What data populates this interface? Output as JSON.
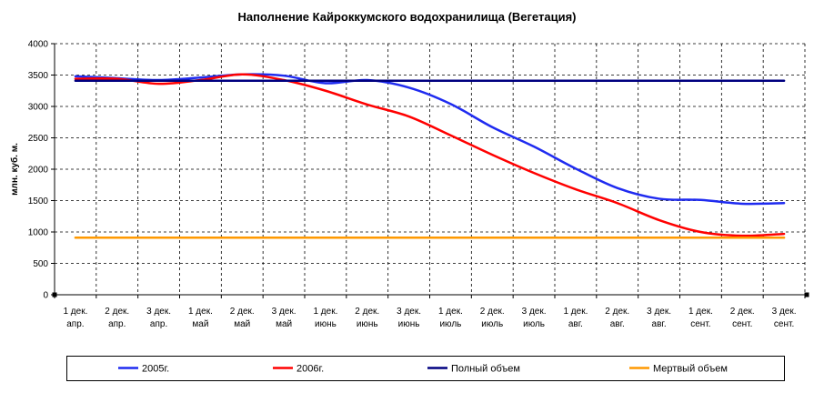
{
  "chart_data": {
    "type": "line",
    "title": "Наполнение Кайроккумского водохранилища (Вегетация)",
    "ylabel": "млн. куб. м.",
    "ylim": [
      0,
      4000
    ],
    "yticks": [
      0,
      500,
      1000,
      1500,
      2000,
      2500,
      3000,
      3500,
      4000
    ],
    "categories": [
      [
        "1 дек.",
        "апр."
      ],
      [
        "2 дек.",
        "апр."
      ],
      [
        "3 дек.",
        "апр."
      ],
      [
        "1 дек.",
        "май"
      ],
      [
        "2 дек.",
        "май"
      ],
      [
        "3 дек.",
        "май"
      ],
      [
        "1 дек.",
        "июнь"
      ],
      [
        "2 дек.",
        "июнь"
      ],
      [
        "3 дек.",
        "июнь"
      ],
      [
        "1 дек.",
        "июль"
      ],
      [
        "2 дек.",
        "июль"
      ],
      [
        "3 дек.",
        "июль"
      ],
      [
        "1 дек.",
        "авг."
      ],
      [
        "2 дек.",
        "авг."
      ],
      [
        "3 дек.",
        "авг."
      ],
      [
        "1 дек.",
        "сент."
      ],
      [
        "2 дек.",
        "сент."
      ],
      [
        "3 дек.",
        "сент."
      ]
    ],
    "series": [
      {
        "name": "2005г.",
        "color": "#1f2bf0",
        "values": [
          3480,
          3450,
          3420,
          3460,
          3510,
          3490,
          3370,
          3420,
          3300,
          3040,
          2670,
          2360,
          2010,
          1700,
          1530,
          1510,
          1450,
          1460
        ]
      },
      {
        "name": "2006г.",
        "color": "#ff0000",
        "values": [
          3440,
          3440,
          3360,
          3420,
          3510,
          3420,
          3250,
          3030,
          2840,
          2540,
          2230,
          1940,
          1680,
          1460,
          1190,
          1000,
          940,
          970
        ]
      },
      {
        "name": "Полный объем",
        "color": "#000080",
        "values": [
          3410,
          3410,
          3410,
          3410,
          3410,
          3410,
          3410,
          3410,
          3410,
          3410,
          3410,
          3410,
          3410,
          3410,
          3410,
          3410,
          3410,
          3410
        ]
      },
      {
        "name": "Мертвый объем",
        "color": "#ff9900",
        "values": [
          910,
          910,
          910,
          910,
          910,
          910,
          910,
          910,
          910,
          910,
          910,
          910,
          910,
          910,
          910,
          910,
          910,
          910
        ]
      }
    ],
    "smooth": true,
    "grid": true,
    "legend": "bottom"
  }
}
